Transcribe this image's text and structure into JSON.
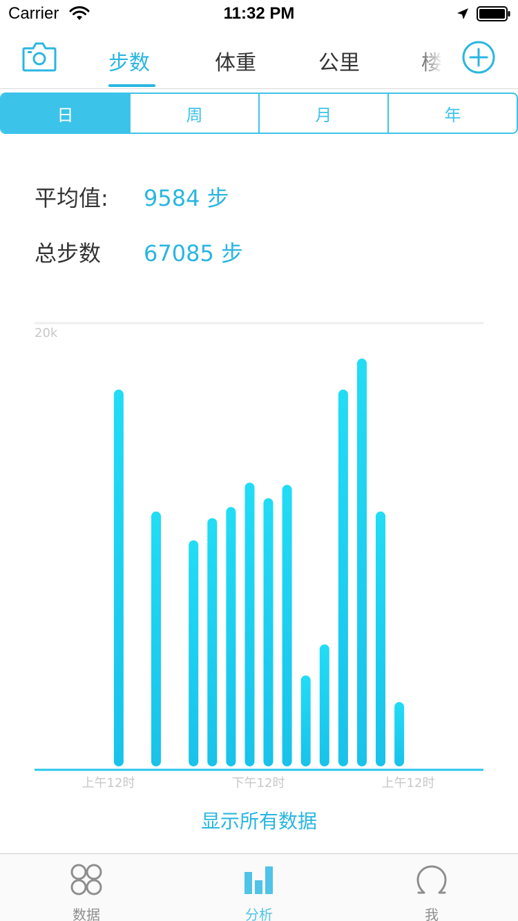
{
  "status_bar": {
    "carrier": "Carrier",
    "time": "11:32 PM"
  },
  "top_nav": {
    "tabs": [
      {
        "label": "步数",
        "active": true
      },
      {
        "label": "体重",
        "active": false
      },
      {
        "label": "公里",
        "active": false
      },
      {
        "label": "楼",
        "active": false
      }
    ],
    "left_icon": "camera-icon",
    "right_icon": "plus-circle-icon"
  },
  "segmented": {
    "options": [
      {
        "label": "日",
        "active": true
      },
      {
        "label": "周",
        "active": false
      },
      {
        "label": "月",
        "active": false
      },
      {
        "label": "年",
        "active": false
      }
    ]
  },
  "stats": {
    "average_label": "平均值:",
    "average_value": "9584 步",
    "total_label": "总步数",
    "total_value": "67085 步"
  },
  "chart_data": {
    "type": "bar",
    "y_max_label": "20k",
    "ylim": [
      0,
      20000
    ],
    "x_tick_labels": [
      "上午12时",
      "下午12时",
      "上午12时"
    ],
    "bar_color_top": "#22dcf5",
    "bar_color_bottom": "#19c2ea",
    "series": [
      {
        "values": [
          0,
          0,
          0,
          0,
          17000,
          0,
          11500,
          0,
          10200,
          11200,
          11700,
          12800,
          12100,
          12700,
          4100,
          5500,
          17000,
          18400,
          11500,
          2900,
          0,
          0,
          0,
          0
        ]
      }
    ]
  },
  "show_all_label": "显示所有数据",
  "tab_bar": {
    "items": [
      {
        "label": "数据",
        "icon": "four-circles-icon",
        "active": false
      },
      {
        "label": "分析",
        "icon": "bar-chart-icon",
        "active": true
      },
      {
        "label": "我",
        "icon": "omega-icon",
        "active": false
      }
    ]
  }
}
